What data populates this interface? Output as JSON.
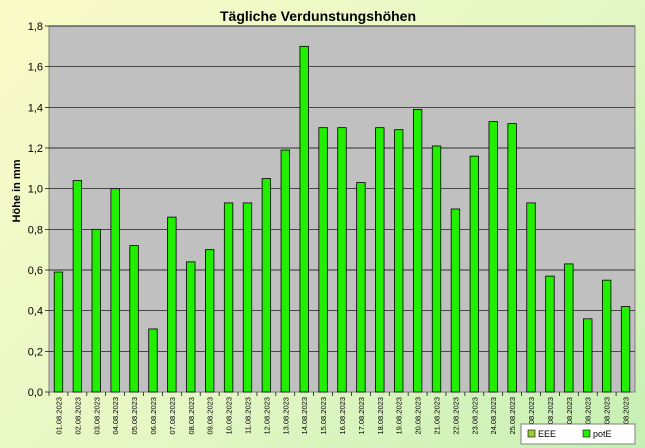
{
  "chart_data": {
    "type": "bar",
    "title": "Tägliche Verdunstungshöhen",
    "ylabel": "Höhe in mm",
    "xlabel": "",
    "ylim": [
      0,
      1.8
    ],
    "yticks": [
      "0,0",
      "0,2",
      "0,4",
      "0,6",
      "0,8",
      "1,0",
      "1,2",
      "1,4",
      "1,6",
      "1,8"
    ],
    "grid": true,
    "legend_position": "bottom-right",
    "categories": [
      "01.08.2023",
      "02.08.2023",
      "03.08.2023",
      "04.08.2023",
      "05.08.2023",
      "06.08.2023",
      "07.08.2023",
      "08.08.2023",
      "09.08.2023",
      "10.08.2023",
      "11.08.2023",
      "12.08.2023",
      "13.08.2023",
      "14.08.2023",
      "15.08.2023",
      "16.08.2023",
      "17.08.2023",
      "18.08.2023",
      "19.08.2023",
      "20.08.2023",
      "21.08.2023",
      "22.08.2023",
      "23.08.2023",
      "24.08.2023",
      "25.08.2023",
      "26.08.2023",
      "27.08.2023",
      "28.08.2023",
      "29.08.2023",
      "30.08.2023",
      "31.08.2023"
    ],
    "series": [
      {
        "name": "EEE",
        "color": "#9acd32",
        "values": [
          null,
          null,
          null,
          null,
          null,
          null,
          null,
          null,
          null,
          null,
          null,
          null,
          null,
          null,
          null,
          null,
          null,
          null,
          null,
          null,
          null,
          null,
          null,
          null,
          null,
          null,
          null,
          null,
          null,
          null,
          null
        ]
      },
      {
        "name": "potE",
        "color": "#22ee00",
        "values": [
          0.59,
          1.04,
          0.8,
          1.0,
          0.72,
          0.31,
          0.86,
          0.64,
          0.7,
          0.93,
          0.93,
          1.05,
          1.19,
          1.7,
          1.3,
          1.3,
          1.03,
          1.3,
          1.29,
          1.39,
          1.21,
          0.9,
          1.16,
          1.33,
          1.32,
          0.93,
          0.57,
          0.63,
          0.36,
          0.55,
          0.42
        ]
      }
    ]
  }
}
